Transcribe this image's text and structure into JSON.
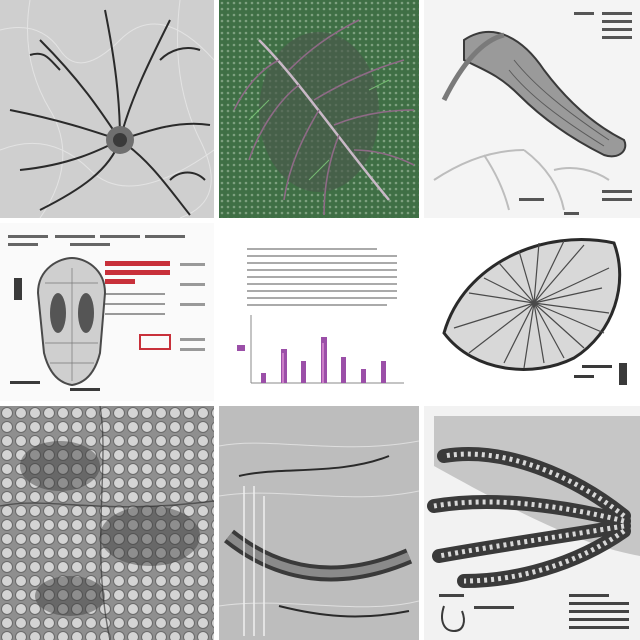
{
  "grid": {
    "tiles": [
      {
        "name": "tile-1",
        "subject": "radiating-network"
      },
      {
        "name": "tile-2",
        "subject": "leaf-on-green"
      },
      {
        "name": "tile-3",
        "subject": "curved-organ-diagram"
      },
      {
        "name": "tile-4",
        "subject": "skull-chart-document"
      },
      {
        "name": "tile-5",
        "subject": "text-and-bar-chart"
      },
      {
        "name": "tile-6",
        "subject": "oval-ribbed-specimen"
      },
      {
        "name": "tile-7",
        "subject": "cellular-texture"
      },
      {
        "name": "tile-8",
        "subject": "ribbed-tissue"
      },
      {
        "name": "tile-9",
        "subject": "tentacled-specimen"
      }
    ]
  },
  "colors": {
    "gray_light": "#d9d9d9",
    "gray_mid": "#8a8a8a",
    "gray_dark": "#3a3a3a",
    "green_bg": "#3f6f45",
    "red_accent": "#c8303a",
    "purple_accent": "#9b4fa8"
  }
}
